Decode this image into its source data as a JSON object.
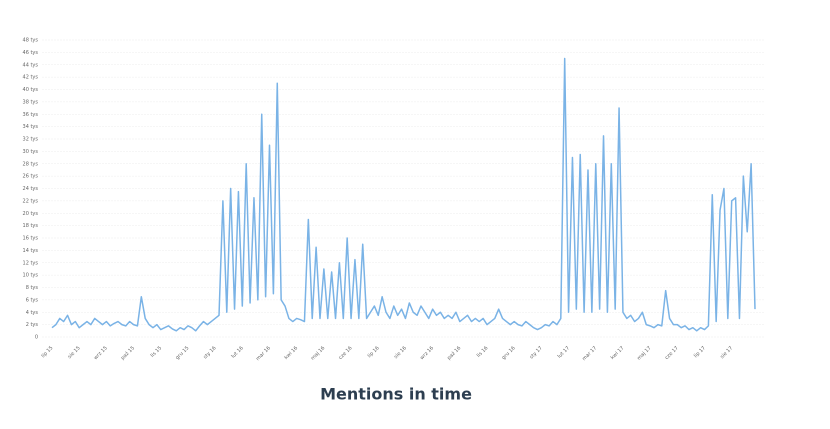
{
  "chart_data": {
    "type": "line",
    "title": "Mentions in time",
    "categories": [
      "lip 15",
      null,
      null,
      null,
      null,
      null,
      null,
      "sie 15",
      null,
      null,
      null,
      null,
      null,
      null,
      "wrz 15",
      null,
      null,
      null,
      null,
      null,
      null,
      "paź 15",
      null,
      null,
      null,
      null,
      null,
      null,
      "lis 15",
      null,
      null,
      null,
      null,
      null,
      null,
      "gru 15",
      null,
      null,
      null,
      null,
      null,
      null,
      "sty 16",
      null,
      null,
      null,
      null,
      null,
      null,
      "lut 16",
      null,
      null,
      null,
      null,
      null,
      null,
      "mar 16",
      null,
      null,
      null,
      null,
      null,
      null,
      "kwi 16",
      null,
      null,
      null,
      null,
      null,
      null,
      "maj 16",
      null,
      null,
      null,
      null,
      null,
      null,
      "cze 16",
      null,
      null,
      null,
      null,
      null,
      null,
      "lip 16",
      null,
      null,
      null,
      null,
      null,
      null,
      "sie 16",
      null,
      null,
      null,
      null,
      null,
      null,
      "wrz 16",
      null,
      null,
      null,
      null,
      null,
      null,
      "paź 16",
      null,
      null,
      null,
      null,
      null,
      null,
      "lis 16",
      null,
      null,
      null,
      null,
      null,
      null,
      "gru 16",
      null,
      null,
      null,
      null,
      null,
      null,
      "sty 17",
      null,
      null,
      null,
      null,
      null,
      null,
      "lut 17",
      null,
      null,
      null,
      null,
      null,
      null,
      "mar 17",
      null,
      null,
      null,
      null,
      null,
      null,
      "kwi 17",
      null,
      null,
      null,
      null,
      null,
      null,
      "maj 17",
      null,
      null,
      null,
      null,
      null,
      null,
      "cze 17",
      null,
      null,
      null,
      null,
      null,
      null,
      "lip 17",
      null,
      null,
      null,
      null,
      null,
      null,
      "sie 17",
      null,
      null,
      null,
      null,
      null,
      null
    ],
    "series": [
      {
        "color": "#7ab3e6",
        "values": [
          1.5,
          2,
          3,
          2.5,
          3.5,
          2,
          2.5,
          1.5,
          2,
          2.5,
          2,
          3,
          2.5,
          2,
          2.5,
          1.8,
          2.2,
          2.5,
          2,
          1.8,
          2.5,
          2,
          1.8,
          6.5,
          3,
          2,
          1.5,
          2,
          1.2,
          1.5,
          1.8,
          1.3,
          1,
          1.5,
          1.2,
          1.8,
          1.5,
          1,
          1.8,
          2.5,
          2,
          2.5,
          3,
          3.5,
          22,
          4,
          24,
          4.5,
          23.5,
          5,
          28,
          5.5,
          22.5,
          6,
          36,
          6.5,
          31,
          7,
          41,
          6,
          5,
          3,
          2.5,
          3,
          2.8,
          2.5,
          19,
          3,
          14.5,
          3,
          11,
          3,
          10.5,
          3,
          12,
          3,
          16,
          3,
          12.5,
          3,
          15,
          3,
          4,
          5,
          3.5,
          6.5,
          4,
          3,
          5,
          3.5,
          4.5,
          3,
          5.5,
          4,
          3.5,
          5,
          4,
          3,
          4.5,
          3.5,
          4,
          3,
          3.5,
          3,
          4,
          2.5,
          3,
          3.5,
          2.5,
          3,
          2.5,
          3,
          2,
          2.5,
          3,
          4.5,
          3,
          2.5,
          2,
          2.5,
          2,
          1.8,
          2.5,
          2,
          1.5,
          1.2,
          1.5,
          2,
          1.8,
          2.5,
          2,
          3,
          45,
          4,
          29,
          4.5,
          29.5,
          4,
          27,
          4,
          28,
          4.5,
          32.5,
          4,
          28,
          4.5,
          37,
          4,
          3,
          3.5,
          2.5,
          3,
          4,
          2,
          1.8,
          1.5,
          2,
          1.8,
          7.5,
          3,
          2,
          2,
          1.5,
          1.8,
          1.2,
          1.5,
          1,
          1.5,
          1.2,
          1.8,
          23,
          2.5,
          20.5,
          24,
          3,
          22,
          22.5,
          3,
          26,
          17,
          28,
          4.5
        ]
      }
    ],
    "ylim": [
      0,
      48
    ],
    "yticks": [
      0,
      {
        "value": 2,
        "label": "2 tys"
      },
      {
        "value": 4,
        "label": "4 tys"
      },
      {
        "value": 6,
        "label": "6 tys"
      },
      {
        "value": 8,
        "label": "8 tys"
      },
      {
        "value": 10,
        "label": "10 tys"
      },
      {
        "value": 12,
        "label": "12 tys"
      },
      {
        "value": 14,
        "label": "14 tys"
      },
      {
        "value": 16,
        "label": "16 tys"
      },
      {
        "value": 18,
        "label": "18 tys"
      },
      {
        "value": 20,
        "label": "20 tys"
      },
      {
        "value": 22,
        "label": "22 tys"
      },
      {
        "value": 24,
        "label": "24 tys"
      },
      {
        "value": 26,
        "label": "26 tys"
      },
      {
        "value": 28,
        "label": "28 tys"
      },
      {
        "value": 30,
        "label": "30 tys"
      },
      {
        "value": 32,
        "label": "32 tys"
      },
      {
        "value": 34,
        "label": "34 tys"
      },
      {
        "value": 36,
        "label": "36 tys"
      },
      {
        "value": 38,
        "label": "38 tys"
      },
      {
        "value": 40,
        "label": "40 tys"
      },
      {
        "value": 42,
        "label": "42 tys"
      },
      {
        "value": 44,
        "label": "44 tys"
      },
      {
        "value": 46,
        "label": "46 tys"
      },
      {
        "value": 48,
        "label": "48 tys"
      }
    ],
    "grid": true
  }
}
